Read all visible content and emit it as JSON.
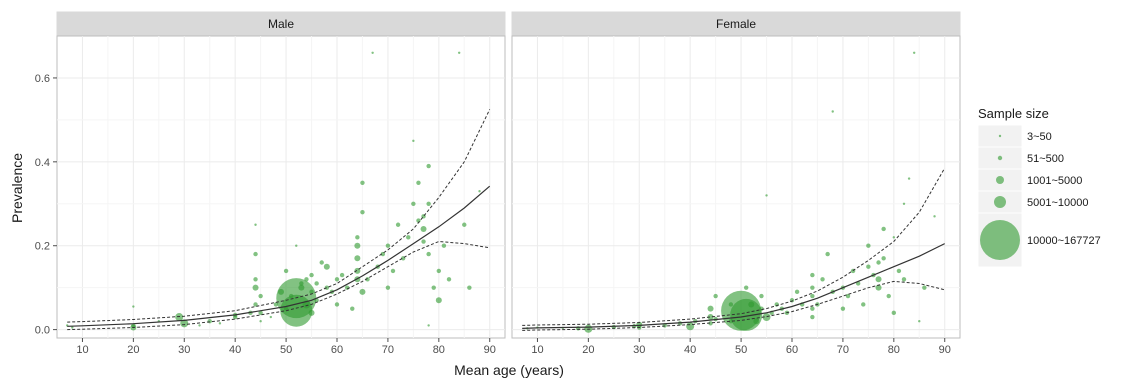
{
  "chart_data": {
    "type": "scatter",
    "xlabel": "Mean age (years)",
    "ylabel": "Prevalence",
    "xlim": [
      5,
      93
    ],
    "ylim": [
      -0.02,
      0.7
    ],
    "x_ticks": [
      10,
      20,
      30,
      40,
      50,
      60,
      70,
      80,
      90
    ],
    "y_ticks": [
      0.0,
      0.2,
      0.4,
      0.6
    ],
    "y_tick_labels": [
      "0.0",
      "0.2",
      "0.4",
      "0.6"
    ],
    "grid": true,
    "point_color": "#2e9a2e",
    "line_color": "#333333",
    "legend": {
      "title": "Sample size",
      "placement": "right",
      "entries": [
        {
          "label": "3~50",
          "r": 1.2
        },
        {
          "label": "51~500",
          "r": 2.2
        },
        {
          "label": "1001~5000",
          "r": 4
        },
        {
          "label": "5001~10000",
          "r": 6
        },
        {
          "label": "10000~167727",
          "r": 20
        }
      ]
    },
    "panels": [
      {
        "strip": "Male",
        "fit": [
          [
            7,
            0.008
          ],
          [
            10,
            0.009
          ],
          [
            20,
            0.014
          ],
          [
            30,
            0.022
          ],
          [
            40,
            0.035
          ],
          [
            50,
            0.055
          ],
          [
            55,
            0.07
          ],
          [
            60,
            0.095
          ],
          [
            65,
            0.128
          ],
          [
            70,
            0.165
          ],
          [
            75,
            0.205
          ],
          [
            80,
            0.245
          ],
          [
            85,
            0.29
          ],
          [
            90,
            0.342
          ]
        ],
        "upper": [
          [
            7,
            0.018
          ],
          [
            10,
            0.019
          ],
          [
            20,
            0.024
          ],
          [
            30,
            0.032
          ],
          [
            40,
            0.045
          ],
          [
            50,
            0.07
          ],
          [
            55,
            0.085
          ],
          [
            60,
            0.11
          ],
          [
            65,
            0.15
          ],
          [
            70,
            0.19
          ],
          [
            75,
            0.24
          ],
          [
            80,
            0.315
          ],
          [
            85,
            0.4
          ],
          [
            90,
            0.525
          ]
        ],
        "lower": [
          [
            7,
            0.0
          ],
          [
            10,
            0.001
          ],
          [
            20,
            0.005
          ],
          [
            30,
            0.012
          ],
          [
            40,
            0.025
          ],
          [
            50,
            0.045
          ],
          [
            55,
            0.06
          ],
          [
            60,
            0.085
          ],
          [
            65,
            0.115
          ],
          [
            70,
            0.15
          ],
          [
            75,
            0.185
          ],
          [
            80,
            0.21
          ],
          [
            85,
            0.205
          ],
          [
            90,
            0.195
          ]
        ],
        "points": [
          [
            7,
            0.01,
            1.2
          ],
          [
            8,
            0.005,
            1.2
          ],
          [
            20,
            0.005,
            3
          ],
          [
            20,
            0.01,
            2.2
          ],
          [
            20,
            0.055,
            1.2
          ],
          [
            25,
            0.02,
            1.2
          ],
          [
            29,
            0.03,
            4
          ],
          [
            30,
            0.015,
            4
          ],
          [
            33,
            0.01,
            1.2
          ],
          [
            35,
            0.02,
            2.2
          ],
          [
            37,
            0.015,
            1.2
          ],
          [
            40,
            0.03,
            2.2
          ],
          [
            40,
            0.035,
            2.2
          ],
          [
            43,
            0.04,
            2.2
          ],
          [
            44,
            0.06,
            2.2
          ],
          [
            44,
            0.1,
            3
          ],
          [
            44,
            0.12,
            2.2
          ],
          [
            44,
            0.18,
            2.2
          ],
          [
            44,
            0.25,
            1.2
          ],
          [
            45,
            0.02,
            1.2
          ],
          [
            45,
            0.04,
            2.2
          ],
          [
            45,
            0.08,
            2.2
          ],
          [
            47,
            0.03,
            1.2
          ],
          [
            48,
            0.06,
            2.2
          ],
          [
            49,
            0.09,
            3
          ],
          [
            50,
            0.05,
            2.2
          ],
          [
            50,
            0.14,
            2.2
          ],
          [
            51,
            0.08,
            2.2
          ],
          [
            52,
            0.075,
            20
          ],
          [
            52,
            0.045,
            16
          ],
          [
            52,
            0.2,
            1.2
          ],
          [
            53,
            0.1,
            3
          ],
          [
            53,
            0.11,
            2.2
          ],
          [
            54,
            0.06,
            4
          ],
          [
            54,
            0.12,
            2.2
          ],
          [
            55,
            0.04,
            3
          ],
          [
            55,
            0.09,
            2.2
          ],
          [
            55,
            0.13,
            2.2
          ],
          [
            56,
            0.07,
            2.2
          ],
          [
            56,
            0.11,
            2.2
          ],
          [
            57,
            0.16,
            2.2
          ],
          [
            58,
            0.1,
            2.2
          ],
          [
            58,
            0.15,
            3
          ],
          [
            59,
            0.09,
            2.2
          ],
          [
            60,
            0.06,
            2.2
          ],
          [
            60,
            0.12,
            2.2
          ],
          [
            61,
            0.13,
            2.2
          ],
          [
            62,
            0.1,
            2.2
          ],
          [
            63,
            0.05,
            2.2
          ],
          [
            64,
            0.12,
            3
          ],
          [
            64,
            0.14,
            3
          ],
          [
            64,
            0.17,
            3
          ],
          [
            64,
            0.2,
            3
          ],
          [
            64,
            0.22,
            2.2
          ],
          [
            65,
            0.28,
            2.2
          ],
          [
            65,
            0.35,
            2.2
          ],
          [
            65,
            0.09,
            3
          ],
          [
            66,
            0.12,
            2.2
          ],
          [
            67,
            0.66,
            1.2
          ],
          [
            68,
            0.15,
            2.2
          ],
          [
            69,
            0.18,
            2.2
          ],
          [
            70,
            0.2,
            2.2
          ],
          [
            70,
            0.1,
            2.2
          ],
          [
            71,
            0.14,
            2.2
          ],
          [
            72,
            0.25,
            2.2
          ],
          [
            73,
            0.17,
            2.2
          ],
          [
            74,
            0.22,
            2.2
          ],
          [
            75,
            0.3,
            2.2
          ],
          [
            75,
            0.45,
            1.2
          ],
          [
            76,
            0.26,
            2.2
          ],
          [
            76,
            0.35,
            2.2
          ],
          [
            77,
            0.21,
            2.2
          ],
          [
            77,
            0.24,
            3
          ],
          [
            77,
            0.27,
            2.2
          ],
          [
            78,
            0.39,
            2.2
          ],
          [
            78,
            0.3,
            2.2
          ],
          [
            78,
            0.18,
            2.2
          ],
          [
            78,
            0.01,
            1.2
          ],
          [
            79,
            0.1,
            2.2
          ],
          [
            80,
            0.14,
            2.2
          ],
          [
            80,
            0.07,
            3
          ],
          [
            81,
            0.2,
            2.2
          ],
          [
            82,
            0.12,
            2.2
          ],
          [
            84,
            0.66,
            1.2
          ],
          [
            85,
            0.25,
            2.2
          ],
          [
            86,
            0.1,
            2.2
          ],
          [
            88,
            0.33,
            1.2
          ]
        ]
      },
      {
        "strip": "Female",
        "fit": [
          [
            7,
            0.003
          ],
          [
            10,
            0.004
          ],
          [
            20,
            0.006
          ],
          [
            30,
            0.01
          ],
          [
            40,
            0.018
          ],
          [
            50,
            0.03
          ],
          [
            55,
            0.04
          ],
          [
            60,
            0.055
          ],
          [
            65,
            0.075
          ],
          [
            70,
            0.1
          ],
          [
            75,
            0.125
          ],
          [
            80,
            0.15
          ],
          [
            85,
            0.175
          ],
          [
            90,
            0.205
          ]
        ],
        "upper": [
          [
            7,
            0.01
          ],
          [
            10,
            0.011
          ],
          [
            20,
            0.013
          ],
          [
            30,
            0.017
          ],
          [
            40,
            0.025
          ],
          [
            50,
            0.038
          ],
          [
            55,
            0.05
          ],
          [
            60,
            0.068
          ],
          [
            65,
            0.092
          ],
          [
            70,
            0.125
          ],
          [
            75,
            0.165
          ],
          [
            80,
            0.21
          ],
          [
            85,
            0.28
          ],
          [
            90,
            0.385
          ]
        ],
        "lower": [
          [
            7,
            -0.002
          ],
          [
            10,
            -0.001
          ],
          [
            20,
            0.001
          ],
          [
            30,
            0.005
          ],
          [
            40,
            0.012
          ],
          [
            50,
            0.022
          ],
          [
            55,
            0.031
          ],
          [
            60,
            0.043
          ],
          [
            65,
            0.06
          ],
          [
            70,
            0.08
          ],
          [
            75,
            0.1
          ],
          [
            80,
            0.115
          ],
          [
            85,
            0.11
          ],
          [
            90,
            0.095
          ]
        ],
        "points": [
          [
            8,
            0.003,
            1.2
          ],
          [
            10,
            0.005,
            1.2
          ],
          [
            15,
            0.004,
            1.2
          ],
          [
            18,
            0.003,
            2.2
          ],
          [
            20,
            0.002,
            4
          ],
          [
            25,
            0.006,
            2.2
          ],
          [
            29,
            0.008,
            2.2
          ],
          [
            30,
            0.012,
            3
          ],
          [
            30,
            0.005,
            2.2
          ],
          [
            35,
            0.01,
            2.2
          ],
          [
            38,
            0.015,
            2.2
          ],
          [
            40,
            0.008,
            4
          ],
          [
            41,
            0.02,
            2.2
          ],
          [
            44,
            0.015,
            2.2
          ],
          [
            44,
            0.03,
            3
          ],
          [
            44,
            0.05,
            3
          ],
          [
            45,
            0.025,
            2.2
          ],
          [
            45,
            0.08,
            2.2
          ],
          [
            48,
            0.02,
            2.2
          ],
          [
            48,
            0.06,
            2.2
          ],
          [
            50,
            0.045,
            20
          ],
          [
            51,
            0.035,
            16
          ],
          [
            51,
            0.1,
            2.2
          ],
          [
            52,
            0.06,
            3
          ],
          [
            53,
            0.02,
            3
          ],
          [
            54,
            0.05,
            2.2
          ],
          [
            54,
            0.08,
            2.2
          ],
          [
            55,
            0.03,
            4
          ],
          [
            55,
            0.32,
            1.2
          ],
          [
            56,
            0.04,
            2.2
          ],
          [
            57,
            0.06,
            2.2
          ],
          [
            58,
            0.05,
            2.2
          ],
          [
            59,
            0.04,
            2.2
          ],
          [
            60,
            0.07,
            2.2
          ],
          [
            61,
            0.09,
            2.2
          ],
          [
            62,
            0.06,
            2.2
          ],
          [
            64,
            0.03,
            2.2
          ],
          [
            64,
            0.05,
            2.2
          ],
          [
            64,
            0.08,
            2.2
          ],
          [
            64,
            0.1,
            2.2
          ],
          [
            64,
            0.13,
            2.2
          ],
          [
            65,
            0.06,
            2.2
          ],
          [
            66,
            0.12,
            2.2
          ],
          [
            67,
            0.18,
            2.2
          ],
          [
            68,
            0.52,
            1.2
          ],
          [
            68,
            0.09,
            2.2
          ],
          [
            70,
            0.05,
            2.2
          ],
          [
            70,
            0.1,
            2.2
          ],
          [
            71,
            0.08,
            2.2
          ],
          [
            72,
            0.14,
            2.2
          ],
          [
            73,
            0.11,
            2.2
          ],
          [
            74,
            0.06,
            2.2
          ],
          [
            75,
            0.15,
            2.2
          ],
          [
            75,
            0.2,
            2.2
          ],
          [
            76,
            0.13,
            2.2
          ],
          [
            77,
            0.1,
            3
          ],
          [
            77,
            0.12,
            3
          ],
          [
            77,
            0.16,
            2.2
          ],
          [
            78,
            0.24,
            2.2
          ],
          [
            78,
            0.17,
            2.2
          ],
          [
            79,
            0.08,
            2.2
          ],
          [
            80,
            0.22,
            1.2
          ],
          [
            80,
            0.04,
            2.2
          ],
          [
            81,
            0.14,
            2.2
          ],
          [
            82,
            0.3,
            1.2
          ],
          [
            82,
            0.12,
            2.2
          ],
          [
            83,
            0.36,
            1.2
          ],
          [
            84,
            0.66,
            1.2
          ],
          [
            85,
            0.02,
            1.2
          ],
          [
            86,
            0.1,
            2.2
          ],
          [
            88,
            0.27,
            1.2
          ]
        ]
      }
    ]
  }
}
